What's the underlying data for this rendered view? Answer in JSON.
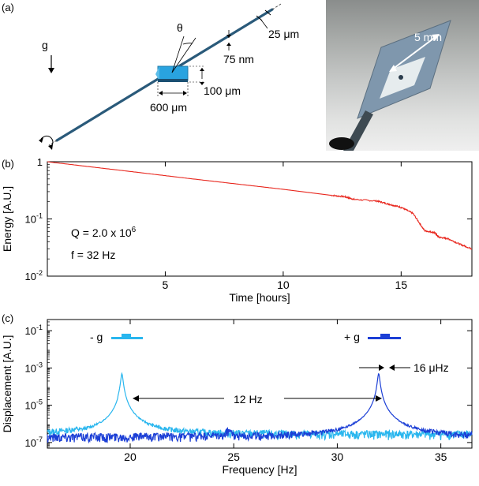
{
  "panel_a": {
    "label": "(a)",
    "gravity_label": "g",
    "theta_label": "θ",
    "dim_wire": "25 μm",
    "dim_film": "75 nm",
    "dim_mirror_thick": "100 μm",
    "dim_mirror_width": "600 μm",
    "photo_scale": "5 mm",
    "colors": {
      "wire": "#2a5a7a",
      "mirror": "#29a3e0"
    }
  },
  "panel_b": {
    "label": "(b)",
    "q_text_prefix": "Q = 2.0 x 10",
    "q_text_exp": "6",
    "f_text": "f = 32 Hz"
  },
  "panel_c": {
    "label": "(c)",
    "minus_g_label": "- g",
    "plus_g_label": "+ g",
    "separation_label": "12 Hz",
    "linewidth_label": "16 μHz"
  },
  "chart_data": [
    {
      "type": "line",
      "title": "",
      "xlabel": "Time [hours]",
      "ylabel": "Energy [A.U.]",
      "xlim": [
        0,
        18
      ],
      "ylim": [
        0.01,
        1
      ],
      "yscale": "log",
      "xticks": [
        5,
        10,
        15
      ],
      "yticks": [
        {
          "value": 1,
          "base": "1",
          "exp": ""
        },
        {
          "value": 0.1,
          "base": "10",
          "exp": "-1"
        },
        {
          "value": 0.01,
          "base": "10",
          "exp": "-2"
        }
      ],
      "series": [
        {
          "color": "#e8261d",
          "x": [
            0,
            2,
            4,
            6,
            8,
            10,
            12,
            12.6,
            13,
            14,
            14.5,
            15,
            15.5,
            16,
            16.4,
            16.6,
            17,
            17.5,
            18
          ],
          "y": [
            1,
            0.8,
            0.64,
            0.51,
            0.41,
            0.33,
            0.26,
            0.245,
            0.22,
            0.205,
            0.18,
            0.16,
            0.125,
            0.062,
            0.058,
            0.048,
            0.045,
            0.036,
            0.03
          ]
        }
      ]
    },
    {
      "type": "line",
      "title": "",
      "xlabel": "Frequency [Hz]",
      "ylabel": "Displacement [A.U.]",
      "xlim": [
        16,
        36.5
      ],
      "ylim": [
        5e-08,
        0.4
      ],
      "yscale": "log",
      "xticks": [
        20,
        25,
        30,
        35
      ],
      "yticks": [
        {
          "value": 0.1,
          "base": "10",
          "exp": "-1"
        },
        {
          "value": 0.001,
          "base": "10",
          "exp": "-3"
        },
        {
          "value": 1e-05,
          "base": "10",
          "exp": "-5"
        },
        {
          "value": 1e-07,
          "base": "10",
          "exp": "-7"
        }
      ],
      "series": [
        {
          "color": "#29b6ee",
          "peak_x": 19.6,
          "peak_y": 0.0005,
          "floor": 2.2e-07
        },
        {
          "color": "#1c3fd6",
          "peak_x": 32.0,
          "peak_y": 0.0005,
          "floor": 1.6e-07
        }
      ]
    }
  ]
}
